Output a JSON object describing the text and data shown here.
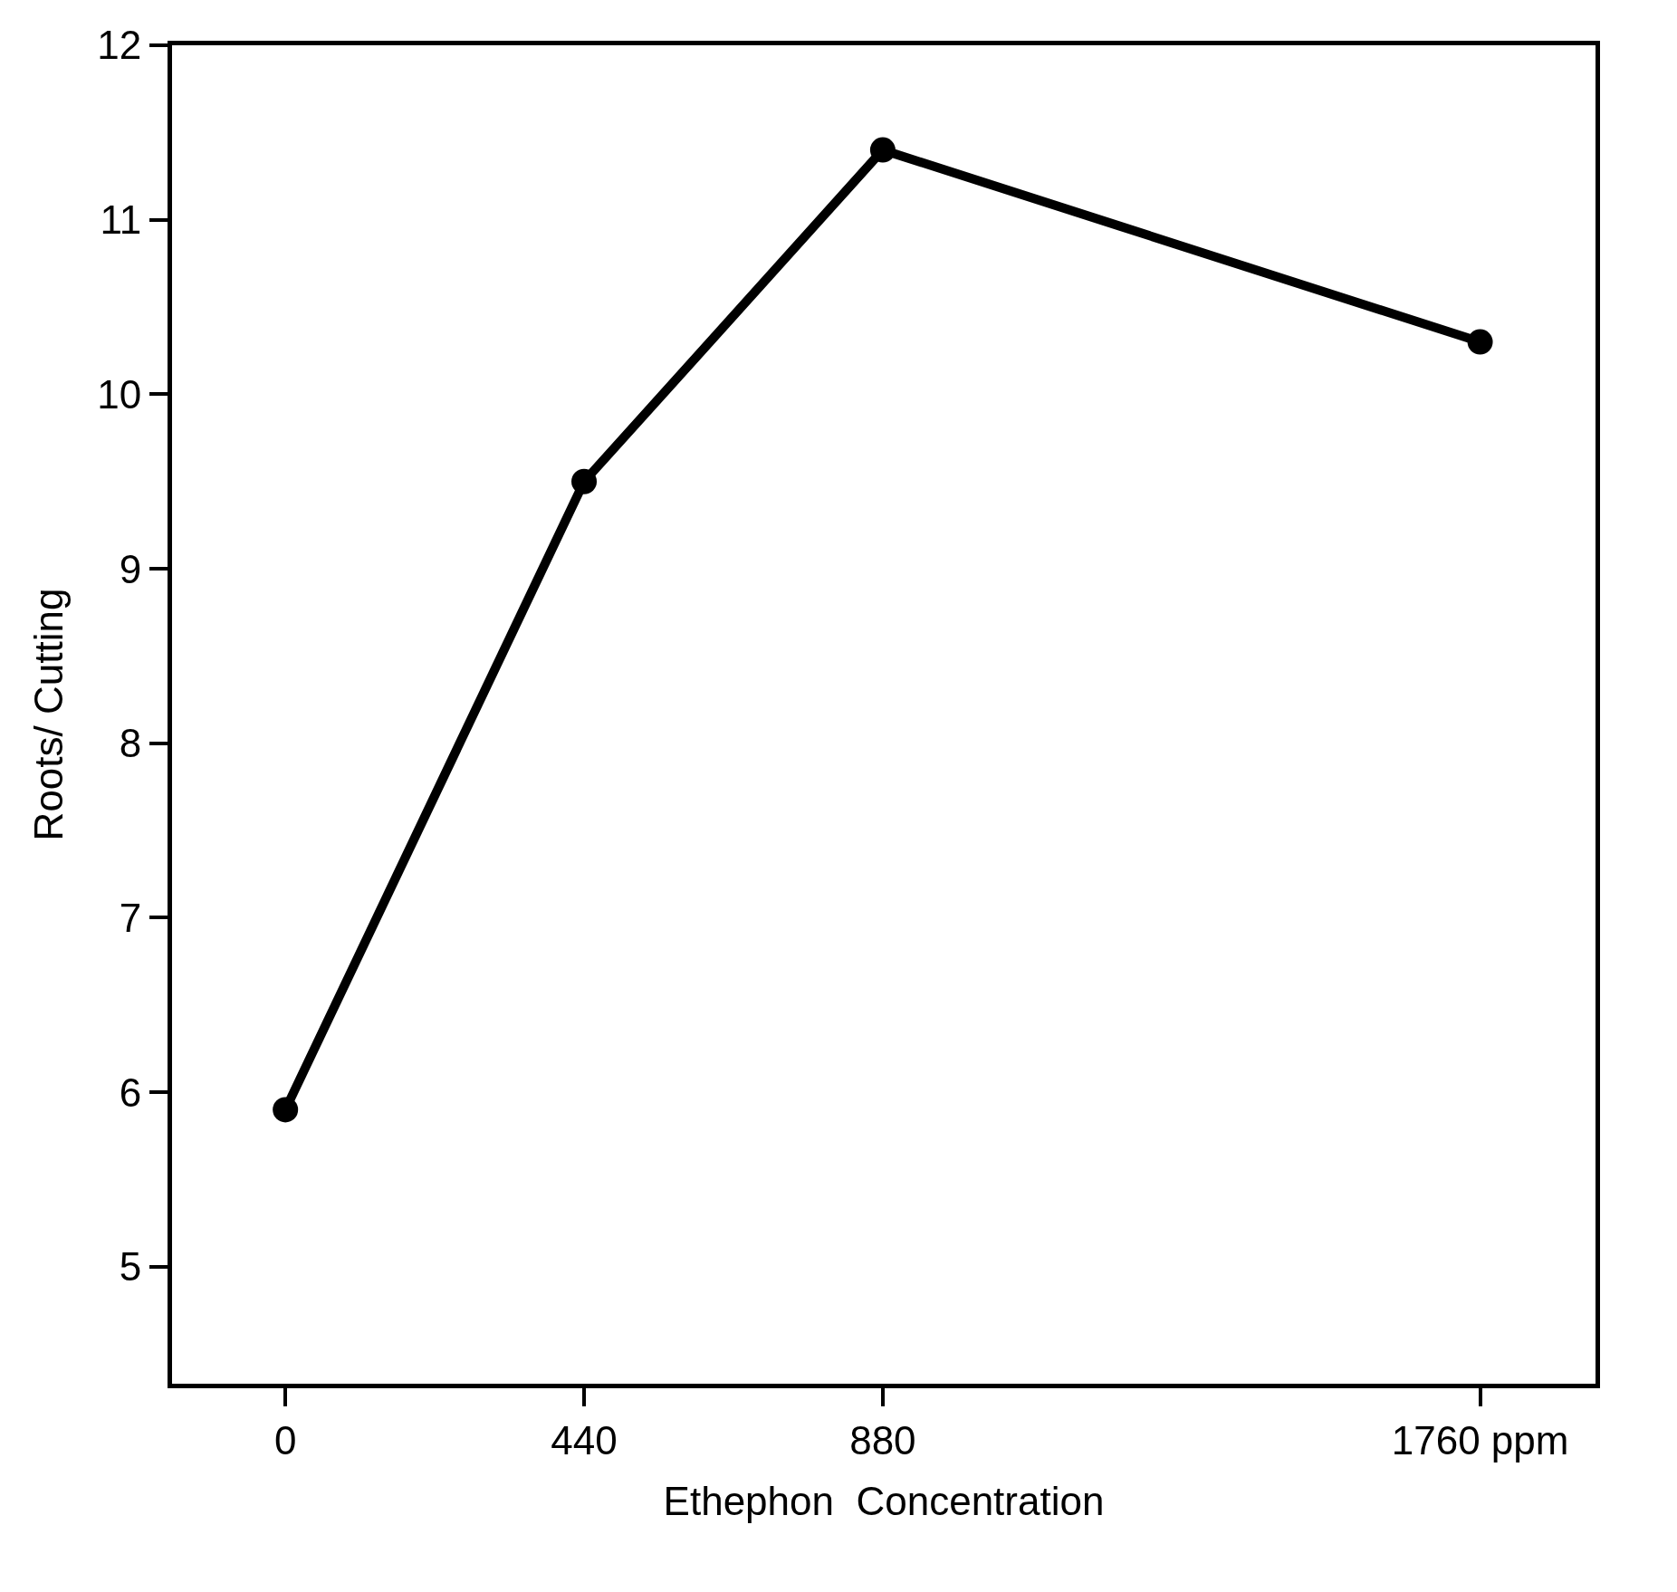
{
  "chart_data": {
    "type": "line",
    "xlabel": "Ethephon  Concentration",
    "ylabel": "Roots/ Cutting",
    "x": [
      0,
      440,
      880,
      1760
    ],
    "series": [
      {
        "color": "#000000",
        "values": [
          5.9,
          9.5,
          11.4,
          10.3
        ]
      }
    ],
    "xlim": [
      -167,
      1930
    ],
    "xticks": [
      0,
      440,
      880,
      {
        "value": 1760,
        "label": "1760 ppm"
      }
    ],
    "ylim": [
      4.33,
      12
    ],
    "yticks": [
      5,
      6,
      7,
      8,
      9,
      10,
      11,
      12
    ],
    "marker": "circle",
    "line_style": "solid",
    "grid": false
  }
}
